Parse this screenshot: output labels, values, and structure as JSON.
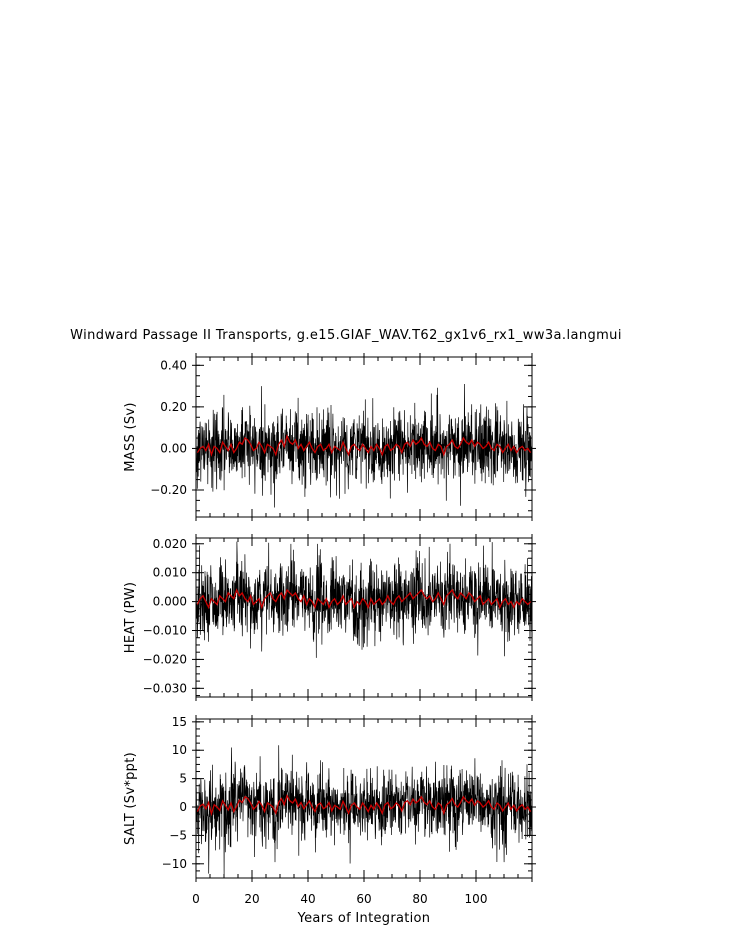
{
  "chart_data": {
    "type": "line",
    "title": "Windward Passage II Transports, g.e15.GIAF_WAV.T62_gx1v6_rx1_ww3a.langmui",
    "xlabel": "Years of Integration",
    "xlim": [
      0,
      120
    ],
    "x_ticks": [
      "0",
      "20",
      "40",
      "60",
      "80",
      "100"
    ],
    "x_tick_values": [
      0,
      20,
      40,
      60,
      80,
      100
    ],
    "series_colors": {
      "monthly": "#000000",
      "annual": "#cc0000"
    },
    "panels": [
      {
        "ylabel": "MASS (Sv)",
        "ylim": [
          -0.33,
          0.44
        ],
        "y_ticks": [
          "0.40",
          "0.20",
          "0.00",
          "−0.20"
        ],
        "y_tick_values": [
          0.4,
          0.2,
          0.0,
          -0.2
        ],
        "monthly_std": 0.09,
        "monthly_min": -0.33,
        "monthly_max": 0.42,
        "annual_mean": [
          -0.02,
          0.0,
          0.01,
          -0.01,
          0.02,
          -0.03,
          0.01,
          0.0,
          -0.02,
          0.03,
          0.01,
          -0.01,
          0.02,
          -0.02,
          0.0,
          0.03,
          0.02,
          0.05,
          0.04,
          0.02,
          -0.01,
          0.0,
          0.03,
          0.01,
          -0.02,
          0.02,
          0.01,
          0.0,
          -0.03,
          0.02,
          0.04,
          0.01,
          0.06,
          0.03,
          0.02,
          0.04,
          0.0,
          0.02,
          -0.01,
          0.01,
          0.03,
          0.0,
          -0.02,
          0.01,
          0.02,
          -0.01,
          0.0,
          0.02,
          -0.02,
          0.01,
          0.0,
          -0.01,
          0.03,
          0.0,
          -0.03,
          0.01,
          0.02,
          0.0,
          -0.01,
          0.02,
          0.0,
          -0.02,
          0.01,
          -0.01,
          0.02,
          0.0,
          -0.03,
          0.01,
          0.02,
          -0.01,
          0.0,
          0.02,
          0.01,
          -0.02,
          0.02,
          0.03,
          0.01,
          0.04,
          0.02,
          0.03,
          0.05,
          0.02,
          0.01,
          0.03,
          0.0,
          -0.01,
          0.02,
          0.01,
          -0.03,
          0.01,
          0.02,
          0.04,
          0.01,
          0.0,
          0.02,
          0.05,
          0.03,
          0.02,
          0.04,
          0.01,
          0.03,
          0.02,
          0.0,
          0.01,
          0.03,
          0.0,
          -0.01,
          0.02,
          0.01,
          -0.02,
          0.0,
          0.02,
          -0.01,
          0.01,
          -0.02,
          0.0,
          0.01,
          -0.01,
          0.0,
          -0.02
        ]
      },
      {
        "ylabel": "HEAT (PW)",
        "ylim": [
          -0.033,
          0.022
        ],
        "y_ticks": [
          "0.020",
          "0.010",
          "0.000",
          "−0.010",
          "−0.020",
          "−0.030"
        ],
        "y_tick_values": [
          0.02,
          0.01,
          0.0,
          -0.01,
          -0.02,
          -0.03
        ],
        "monthly_std": 0.0065,
        "monthly_min": -0.032,
        "monthly_max": 0.022,
        "annual_mean": [
          -0.001,
          0.001,
          0.002,
          0.0,
          -0.002,
          0.001,
          0.0,
          -0.001,
          0.002,
          0.001,
          0.0,
          0.003,
          0.002,
          0.001,
          0.004,
          0.002,
          0.003,
          0.001,
          0.0,
          0.002,
          -0.001,
          0.0,
          0.001,
          -0.002,
          0.001,
          0.002,
          0.003,
          0.001,
          0.0,
          0.002,
          0.003,
          0.001,
          0.004,
          0.003,
          0.002,
          0.003,
          0.001,
          0.0,
          0.002,
          -0.001,
          0.001,
          0.0,
          -0.002,
          0.001,
          0.0,
          -0.001,
          0.001,
          -0.002,
          0.0,
          0.001,
          -0.001,
          0.0,
          0.002,
          -0.001,
          0.0,
          0.001,
          -0.002,
          0.0,
          -0.001,
          0.001,
          0.0,
          -0.002,
          0.001,
          -0.001,
          0.0,
          0.001,
          -0.001,
          0.0,
          0.002,
          0.0,
          -0.001,
          0.001,
          0.002,
          0.0,
          0.001,
          0.002,
          0.003,
          0.001,
          0.002,
          0.003,
          0.004,
          0.002,
          0.001,
          0.002,
          0.0,
          0.001,
          0.003,
          0.001,
          -0.001,
          0.002,
          0.003,
          0.004,
          0.002,
          0.001,
          0.003,
          0.002,
          0.001,
          0.003,
          0.002,
          0.0,
          0.001,
          0.002,
          -0.001,
          0.0,
          0.001,
          -0.001,
          0.0,
          0.001,
          -0.002,
          0.0,
          0.001,
          -0.001,
          0.0,
          -0.002,
          0.0,
          -0.001,
          0.001,
          0.0,
          -0.001,
          0.0
        ]
      },
      {
        "ylabel": "SALT (Sv*ppt)",
        "ylim": [
          -12.5,
          15.5
        ],
        "y_ticks": [
          "15",
          "10",
          "5",
          "0",
          "−5",
          "−10"
        ],
        "y_tick_values": [
          15,
          10,
          5,
          0,
          -5,
          -10
        ],
        "monthly_std": 3.2,
        "monthly_min": -12.0,
        "monthly_max": 14.5,
        "annual_mean": [
          -0.8,
          0.2,
          0.5,
          -0.3,
          0.8,
          -1.2,
          0.4,
          0.0,
          -0.6,
          1.1,
          0.3,
          -0.5,
          0.7,
          -0.8,
          0.1,
          1.2,
          0.8,
          1.8,
          1.5,
          0.7,
          -0.4,
          0.1,
          1.0,
          0.3,
          -0.8,
          0.7,
          0.4,
          0.0,
          -1.1,
          0.8,
          1.5,
          0.4,
          2.0,
          1.1,
          0.7,
          1.4,
          0.1,
          0.8,
          -0.3,
          0.4,
          1.1,
          0.0,
          -0.8,
          0.4,
          0.7,
          -0.3,
          0.0,
          0.8,
          -0.7,
          0.3,
          0.0,
          -0.4,
          1.0,
          0.0,
          -1.1,
          0.3,
          0.7,
          0.0,
          -0.4,
          0.7,
          0.0,
          -0.8,
          0.3,
          -0.4,
          0.7,
          0.0,
          -1.1,
          0.4,
          0.8,
          -0.3,
          0.0,
          0.7,
          0.3,
          -0.7,
          0.8,
          1.1,
          0.4,
          1.4,
          0.7,
          1.1,
          1.8,
          0.8,
          0.4,
          1.1,
          0.0,
          -0.4,
          0.7,
          0.3,
          -1.1,
          0.4,
          0.8,
          1.5,
          0.4,
          0.0,
          0.8,
          1.8,
          1.1,
          0.7,
          1.4,
          0.3,
          1.1,
          0.7,
          0.0,
          0.4,
          1.1,
          0.0,
          -0.4,
          0.7,
          0.3,
          -0.7,
          0.0,
          0.7,
          -0.4,
          0.3,
          -0.7,
          0.0,
          0.4,
          -0.4,
          0.0,
          -0.8
        ]
      }
    ]
  }
}
